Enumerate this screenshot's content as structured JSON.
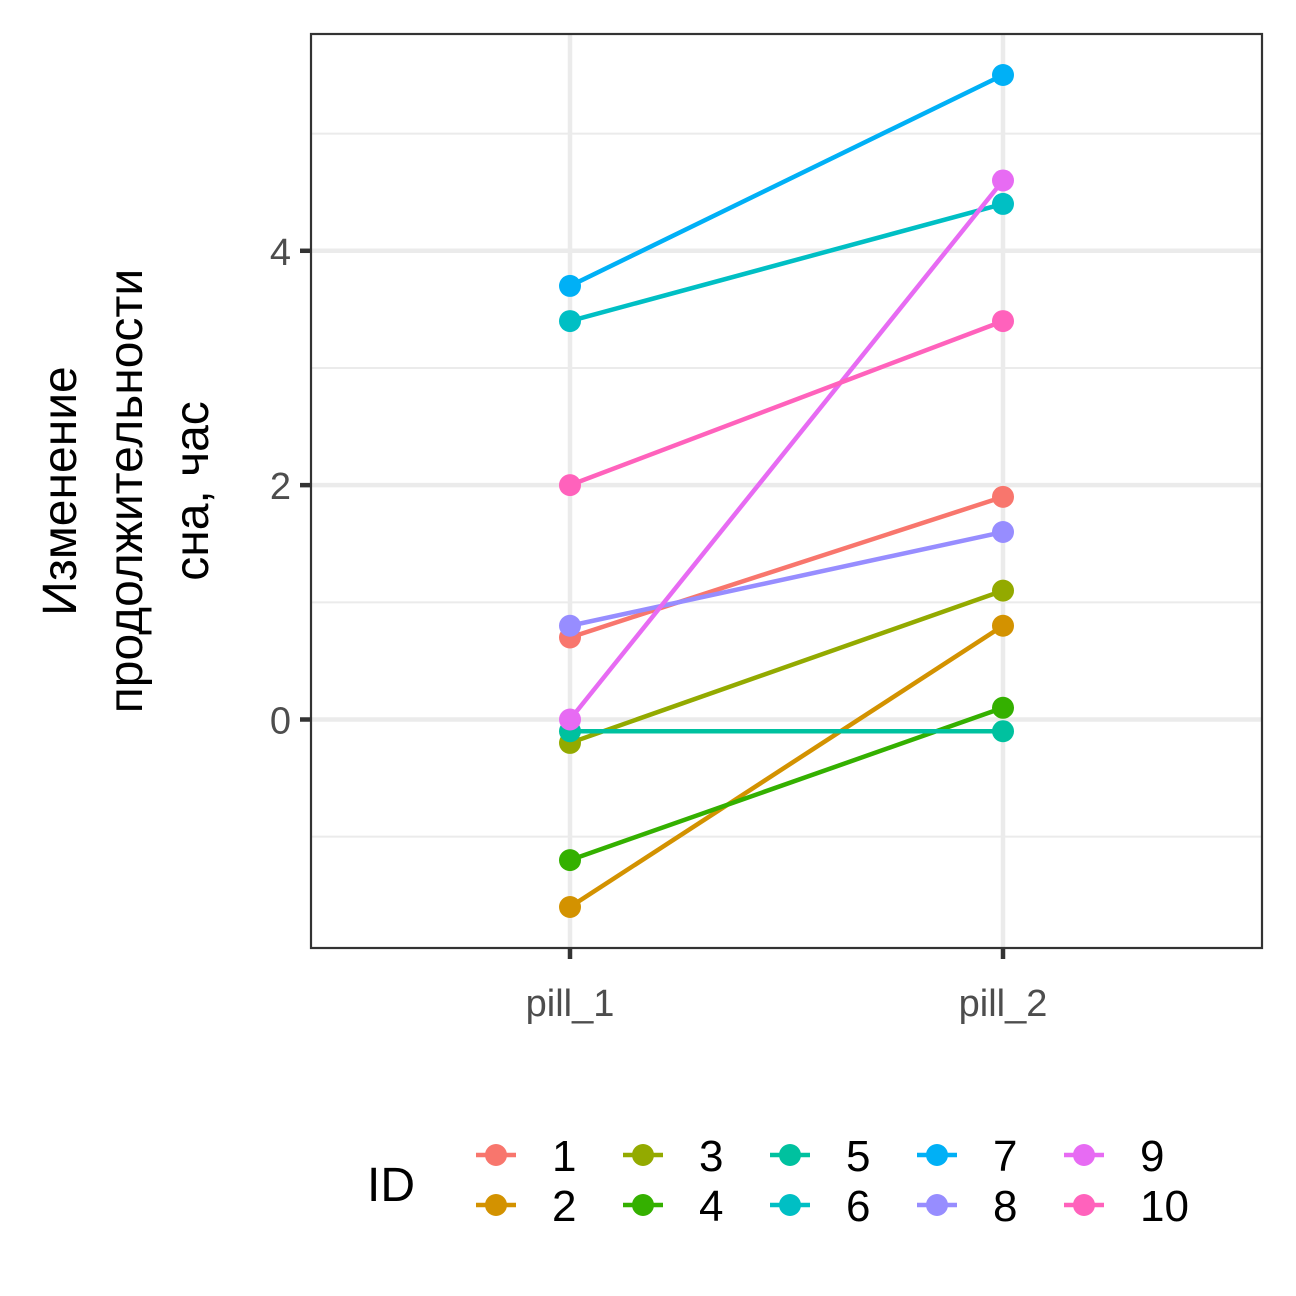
{
  "chart_data": {
    "type": "line",
    "title": "",
    "xlabel": "",
    "ylabel_lines": [
      "Изменение",
      "продолжительности",
      "сна, час"
    ],
    "categories": [
      "pill_1",
      "pill_2"
    ],
    "y_ticks": [
      0,
      2,
      4
    ],
    "ylim": [
      -1.95,
      5.85
    ],
    "grid": true,
    "legend_position": "bottom",
    "legend": {
      "title": "ID"
    },
    "series": [
      {
        "name": "1",
        "color": "#F8766D",
        "values": [
          0.7,
          1.9
        ]
      },
      {
        "name": "2",
        "color": "#D39200",
        "values": [
          -1.6,
          0.8
        ]
      },
      {
        "name": "3",
        "color": "#93AA00",
        "values": [
          -0.2,
          1.1
        ]
      },
      {
        "name": "4",
        "color": "#34B000",
        "values": [
          -1.2,
          0.1
        ]
      },
      {
        "name": "5",
        "color": "#00C19F",
        "values": [
          -0.1,
          -0.1
        ]
      },
      {
        "name": "6",
        "color": "#00BFC4",
        "values": [
          3.4,
          4.4
        ]
      },
      {
        "name": "7",
        "color": "#00B0F6",
        "values": [
          3.7,
          5.5
        ]
      },
      {
        "name": "8",
        "color": "#978DFF",
        "values": [
          0.8,
          1.6
        ]
      },
      {
        "name": "9",
        "color": "#E76BF3",
        "values": [
          0.0,
          4.6
        ]
      },
      {
        "name": "10",
        "color": "#FF62BC",
        "values": [
          2.0,
          3.4
        ]
      }
    ]
  }
}
